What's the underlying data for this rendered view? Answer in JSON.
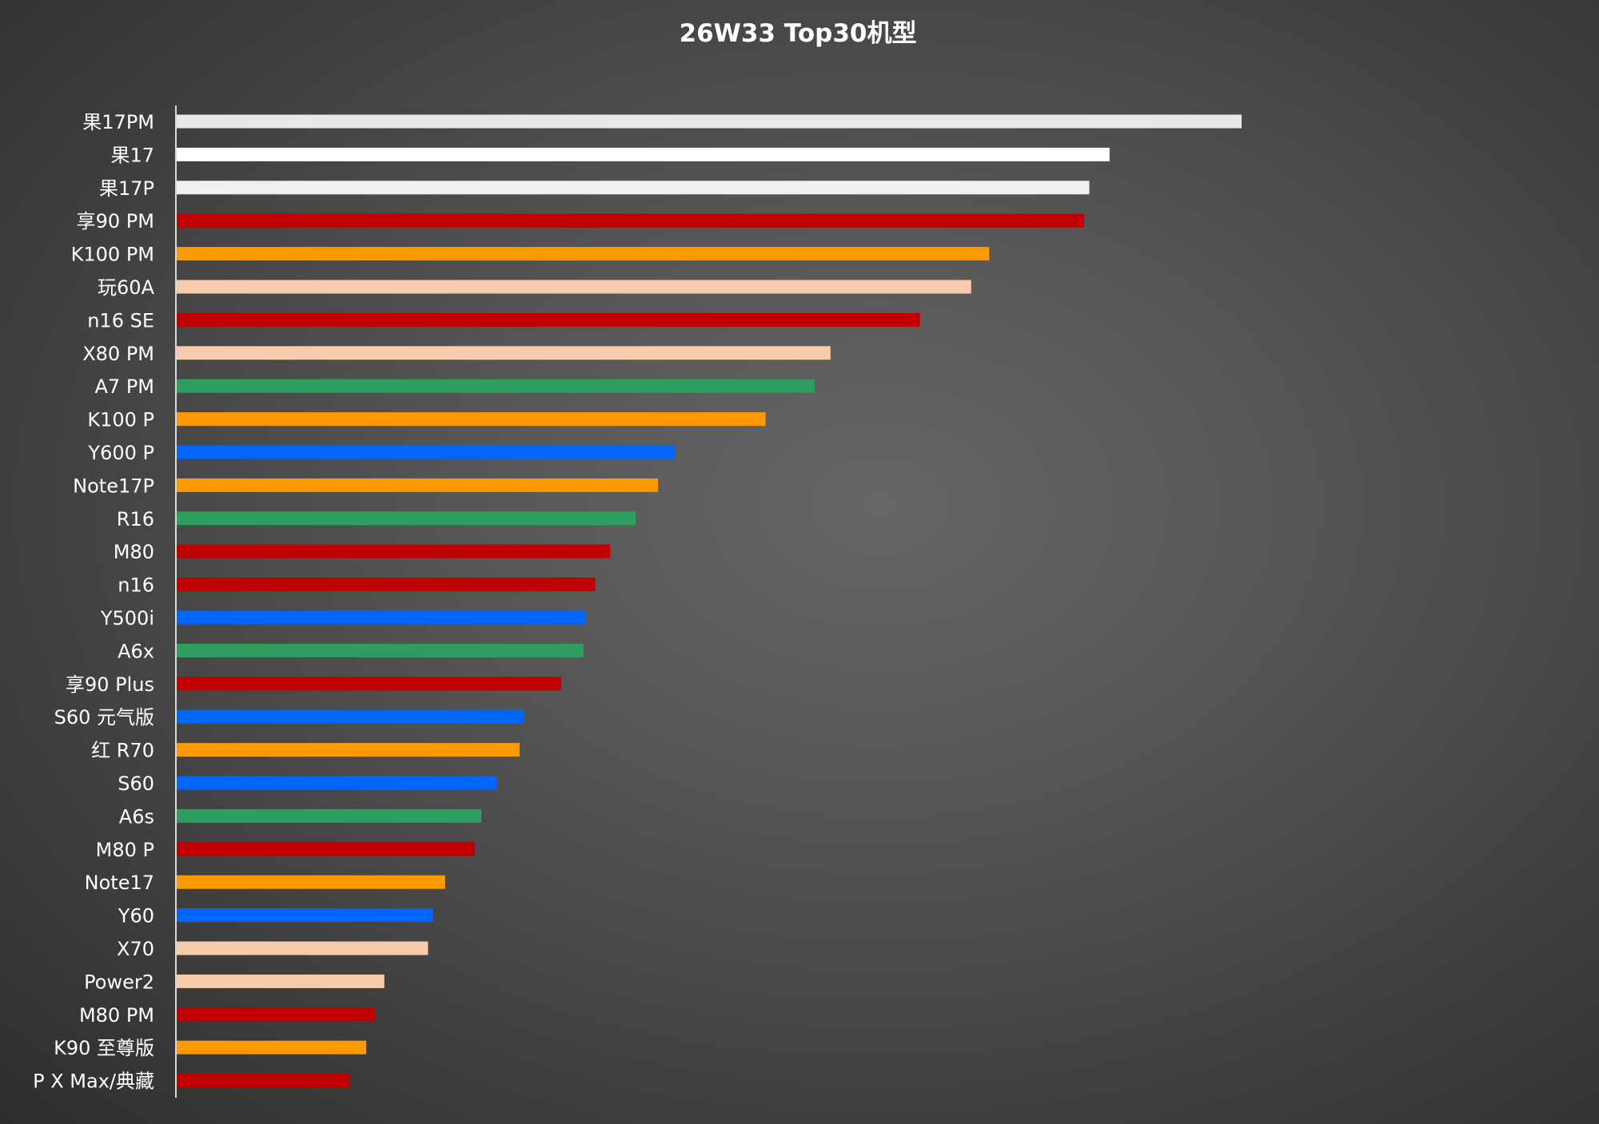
{
  "chart_data": {
    "type": "bar",
    "orientation": "horizontal",
    "title": "26W33 Top30机型",
    "xlabel": "",
    "ylabel": "",
    "x_axis_visible": false,
    "grid": false,
    "legend": "none",
    "xlim": [
      0,
      100
    ],
    "categories": [
      "果17PM",
      "果17",
      "果17P",
      "享90 PM",
      "K100 PM",
      "玩60A",
      "n16 SE",
      "X80 PM",
      "A7 PM",
      "K100 P",
      "Y600 P",
      "Note17P",
      "R16",
      "M80",
      "n16",
      "Y500i",
      "A6x",
      "享90 Plus",
      "S60 元气版",
      "红 R70",
      "S60",
      "A6s",
      "M80 P",
      "Note17",
      "Y60",
      "X70",
      "Power2",
      "M80 PM",
      "K90 至尊版",
      "P X Max/典藏"
    ],
    "values": [
      100,
      87.6,
      85.7,
      85.2,
      76.3,
      74.6,
      69.8,
      61.4,
      59.9,
      55.3,
      46.8,
      45.2,
      43.1,
      40.7,
      39.3,
      38.4,
      38.2,
      36.1,
      32.6,
      32.2,
      30.1,
      28.6,
      28.0,
      25.2,
      24.1,
      23.6,
      19.5,
      18.6,
      17.8,
      16.2
    ],
    "colors": [
      "#e8e8e8",
      "#ffffff",
      "#f0f0f0",
      "#c00000",
      "#ff9900",
      "#f8cbad",
      "#c00000",
      "#f8cbad",
      "#2e9e5e",
      "#ff9900",
      "#0066ff",
      "#ff9900",
      "#2e9e5e",
      "#c00000",
      "#c00000",
      "#0066ff",
      "#2e9e5e",
      "#c00000",
      "#0066ff",
      "#ff9900",
      "#0066ff",
      "#2e9e5e",
      "#c00000",
      "#ff9900",
      "#0066ff",
      "#f8cbad",
      "#f8cbad",
      "#c00000",
      "#ff9900",
      "#c00000"
    ]
  }
}
